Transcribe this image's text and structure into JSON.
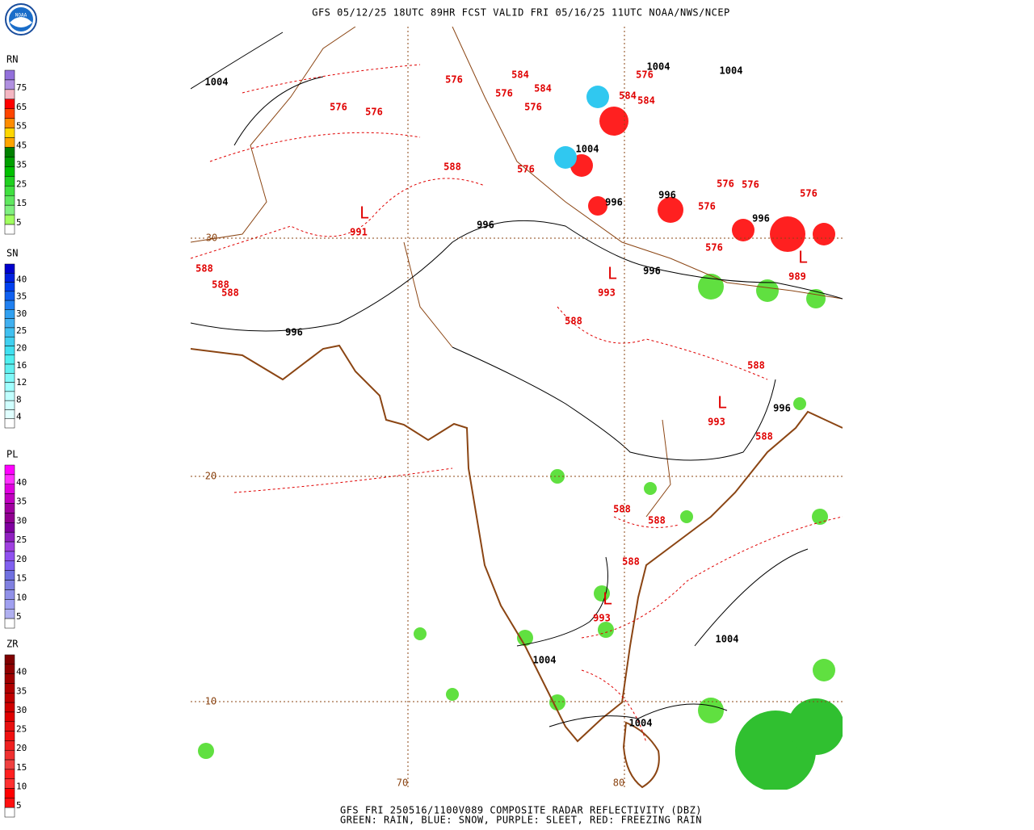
{
  "header": {
    "title": "GFS 05/12/25 18UTC 89HR FCST VALID FRI 05/16/25 11UTC NOAA/NWS/NCEP",
    "logo": "NOAA"
  },
  "footer": {
    "line1": "GFS FRI 250516/1100V089 COMPOSITE RADAR REFLECTIVITY (DBZ)",
    "line2": "GREEN: RAIN, BLUE: SNOW, PURPLE: SLEET, RED: FREEZING RAIN"
  },
  "legends": [
    {
      "title": "RN",
      "labels": [
        "75",
        "65",
        "55",
        "45",
        "35",
        "25",
        "15",
        "5"
      ],
      "colors": [
        "#9370db",
        "#b090e0",
        "#f4b6c2",
        "#ff0000",
        "#ff4500",
        "#ff8c00",
        "#ffd700",
        "#ffa500",
        "#008000",
        "#00a000",
        "#00c000",
        "#20d020",
        "#40e040",
        "#60e860",
        "#80f080",
        "#a0ff60",
        "#ffffff"
      ]
    },
    {
      "title": "SN",
      "labels": [
        "40",
        "35",
        "30",
        "25",
        "20",
        "16",
        "12",
        "8",
        "4"
      ],
      "colors": [
        "#0000cd",
        "#0020e0",
        "#0040f0",
        "#1060f0",
        "#2080f0",
        "#30a0f0",
        "#40b0f0",
        "#40c0f0",
        "#40d0f0",
        "#40e0f0",
        "#50f0f0",
        "#60f0f0",
        "#80f8f8",
        "#a0ffff",
        "#c0ffff",
        "#d0ffff",
        "#e0ffff",
        "#ffffff"
      ]
    },
    {
      "title": "PL",
      "labels": [
        "40",
        "35",
        "30",
        "25",
        "20",
        "15",
        "10",
        "5"
      ],
      "colors": [
        "#ff00ff",
        "#ff30ff",
        "#e000e0",
        "#c000c0",
        "#a000a0",
        "#900090",
        "#8000a0",
        "#9020c0",
        "#a040e0",
        "#9050f0",
        "#8060f0",
        "#7070e0",
        "#8080e0",
        "#9090e8",
        "#a0a0f0",
        "#b0b0f0",
        "#ffffff"
      ]
    },
    {
      "title": "ZR",
      "labels": [
        "40",
        "35",
        "30",
        "25",
        "20",
        "15",
        "10",
        "5"
      ],
      "colors": [
        "#800000",
        "#900000",
        "#a00000",
        "#b00000",
        "#c00000",
        "#d00000",
        "#e00000",
        "#e81010",
        "#f01010",
        "#f02020",
        "#f03030",
        "#f04040",
        "#ff2020",
        "#ff3030",
        "#ff0000",
        "#ff1010",
        "#ffffff"
      ]
    }
  ],
  "map": {
    "isobar_labels": [
      "1004",
      "1004",
      "1004",
      "1004",
      "996",
      "996",
      "996",
      "996",
      "996",
      "996",
      "996",
      "1004",
      "1004",
      "1004"
    ],
    "height_labels": [
      "576",
      "584",
      "576",
      "584",
      "576",
      "576",
      "576",
      "588",
      "576",
      "576",
      "584",
      "584",
      "576",
      "576",
      "576",
      "576",
      "576",
      "588",
      "588",
      "588",
      "588",
      "588",
      "588",
      "588",
      "588",
      "588"
    ],
    "lows": [
      {
        "symbol": "L",
        "pressure": "991"
      },
      {
        "symbol": "L",
        "pressure": "993"
      },
      {
        "symbol": "L",
        "pressure": "993"
      },
      {
        "symbol": "L",
        "pressure": "993"
      },
      {
        "symbol": "L",
        "pressure": "989"
      }
    ],
    "lat_labels": [
      "30",
      "20",
      "10"
    ],
    "lon_labels": [
      "70",
      "80"
    ]
  }
}
